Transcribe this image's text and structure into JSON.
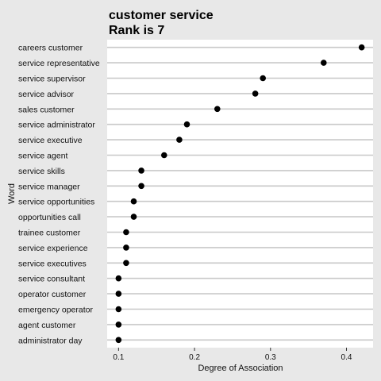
{
  "chart_data": {
    "type": "scatter",
    "title": "customer service",
    "subtitle": "Rank is 7",
    "xlabel": "Degree of Association",
    "ylabel": "Word",
    "xlim": [
      0.085,
      0.435
    ],
    "xticks": [
      0.1,
      0.2,
      0.3,
      0.4
    ],
    "xtick_labels": [
      "0.1",
      "0.2",
      "0.3",
      "0.4"
    ],
    "grid": "horizontal",
    "categories": [
      "careers customer",
      "service representative",
      "service supervisor",
      "service advisor",
      "sales customer",
      "service administrator",
      "service executive",
      "service agent",
      "service skills",
      "service manager",
      "service opportunities",
      "opportunities call",
      "trainee customer",
      "service experience",
      "service executives",
      "service consultant",
      "operator customer",
      "emergency operator",
      "agent customer",
      "administrator day"
    ],
    "values": [
      0.42,
      0.37,
      0.29,
      0.28,
      0.23,
      0.19,
      0.18,
      0.16,
      0.13,
      0.13,
      0.12,
      0.12,
      0.11,
      0.11,
      0.11,
      0.1,
      0.1,
      0.1,
      0.1,
      0.1
    ],
    "colors": {
      "background": "#e8e8e8",
      "panel": "#ffffff",
      "gridline": "#c8c8c8",
      "point": "#000000"
    }
  }
}
